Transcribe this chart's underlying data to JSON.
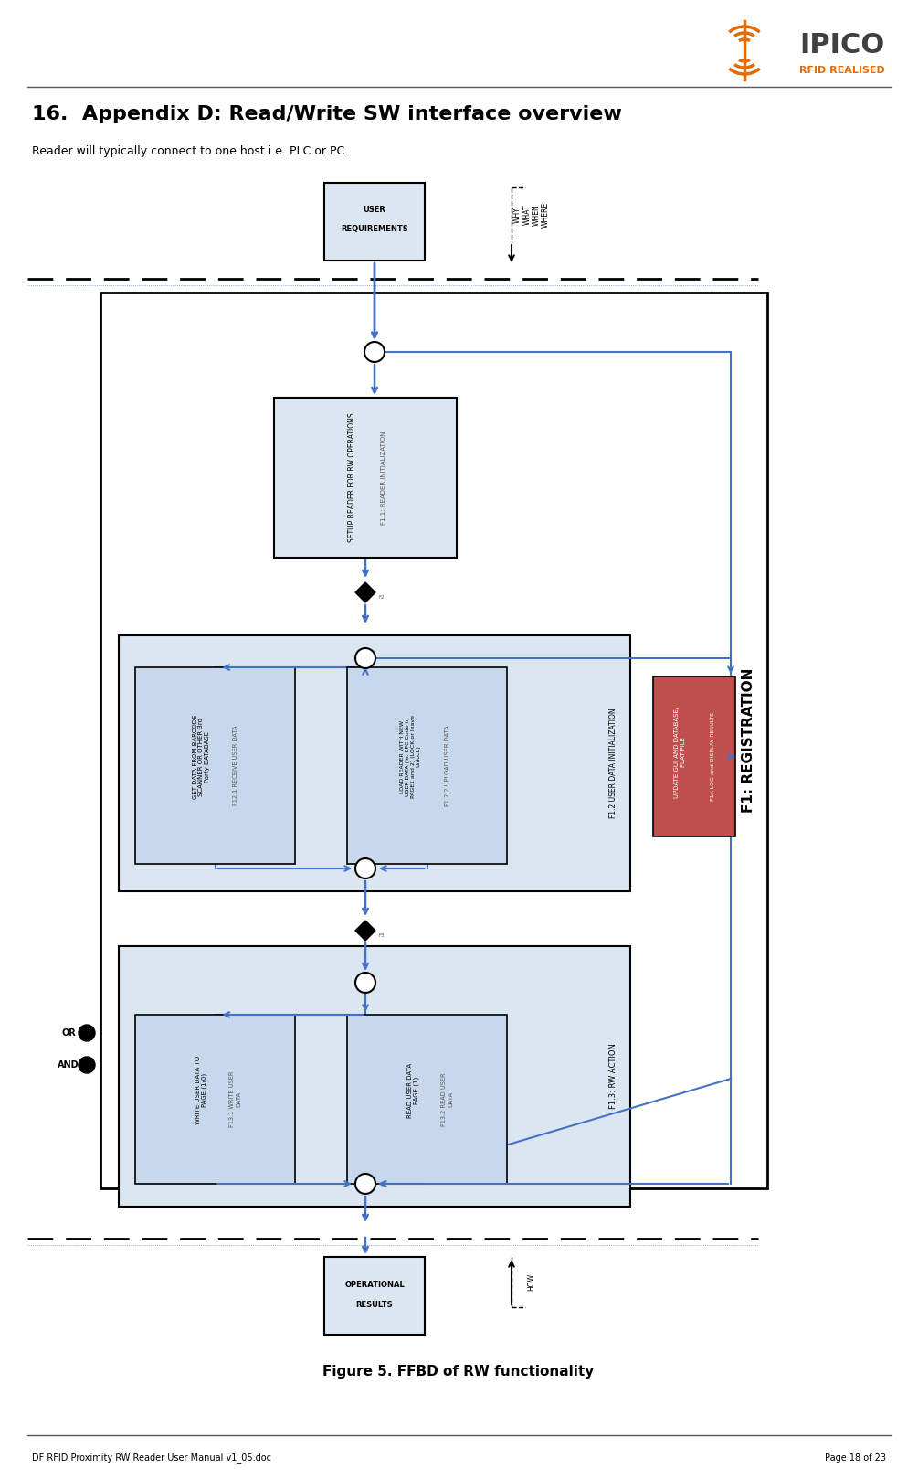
{
  "title": "16.  Appendix D: Read/Write SW interface overview",
  "subtitle": "Reader will typically connect to one host i.e. PLC or PC.",
  "figure_caption": "Figure 5. FFBD of RW functionality",
  "footer_left": "DF RFID Proximity RW Reader User Manual v1_05.doc",
  "footer_right": "Page 18 of 23",
  "bg_color": "#ffffff",
  "box_light_blue": "#dce6f1",
  "box_blue_border": "#4472c4",
  "box_red": "#c0504d",
  "box_dark_border": "#000000",
  "arrow_color": "#4472c4",
  "dashed_line_color": "#000000",
  "text_color": "#000000",
  "orange_color": "#e36c09",
  "gray_text": "#595959"
}
